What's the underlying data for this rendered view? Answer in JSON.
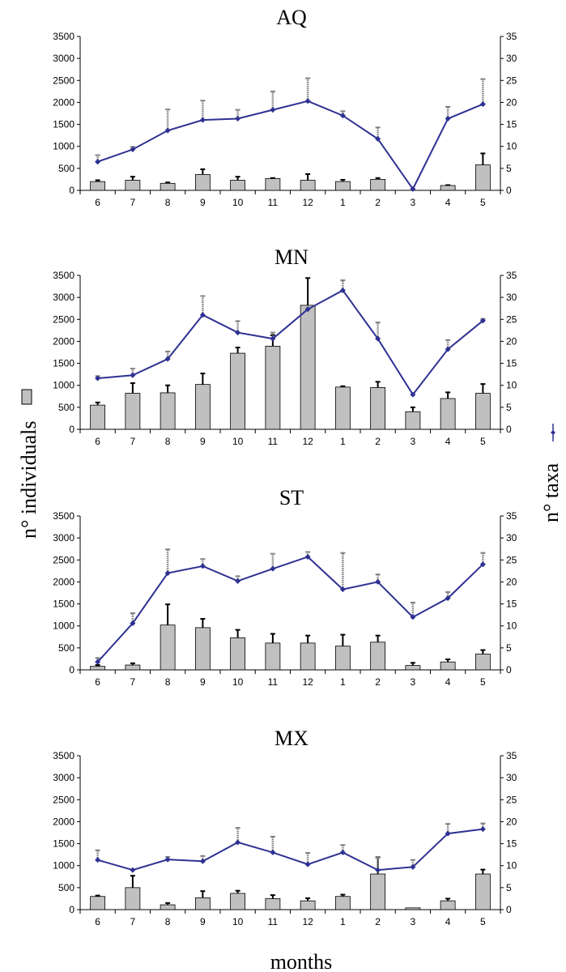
{
  "chart_data": [
    {
      "type": "bar",
      "title": "AQ",
      "categories": [
        "6",
        "7",
        "8",
        "9",
        "10",
        "11",
        "12",
        "1",
        "2",
        "3",
        "4",
        "5"
      ],
      "ylim": [
        0,
        3500
      ],
      "y2lim": [
        0,
        35
      ],
      "yticks": [
        "0",
        "500",
        "1000",
        "1500",
        "2000",
        "2500",
        "3000",
        "3500"
      ],
      "y2ticks": [
        "0",
        "5",
        "10",
        "15",
        "20",
        "25",
        "30",
        "35"
      ],
      "series": [
        {
          "name": "n° individuals",
          "axis": "left",
          "values": [
            200,
            230,
            160,
            360,
            230,
            270,
            230,
            200,
            250,
            0,
            110,
            580
          ],
          "error": [
            30,
            80,
            20,
            120,
            80,
            10,
            140,
            40,
            30,
            0,
            10,
            260
          ]
        },
        {
          "name": "n° taxa",
          "axis": "right",
          "values": [
            6.5,
            9.3,
            13.6,
            16,
            16.3,
            18.3,
            20.3,
            17,
            11.7,
            0.3,
            16.3,
            19.6
          ],
          "error": [
            1.5,
            0.6,
            4.8,
            4.4,
            2,
            4.2,
            5.2,
            1,
            2.6,
            0,
            2.7,
            5.7
          ]
        }
      ]
    },
    {
      "type": "bar",
      "title": "MN",
      "categories": [
        "6",
        "7",
        "8",
        "9",
        "10",
        "11",
        "12",
        "1",
        "2",
        "3",
        "4",
        "5"
      ],
      "ylim": [
        0,
        3500
      ],
      "y2lim": [
        0,
        35
      ],
      "yticks": [
        "0",
        "500",
        "1000",
        "1500",
        "2000",
        "2500",
        "3000",
        "3500"
      ],
      "y2ticks": [
        "0",
        "5",
        "10",
        "15",
        "20",
        "25",
        "30",
        "35"
      ],
      "series": [
        {
          "name": "n° individuals",
          "axis": "left",
          "values": [
            550,
            820,
            830,
            1020,
            1730,
            1890,
            2820,
            960,
            950,
            400,
            700,
            820
          ],
          "error": [
            60,
            230,
            170,
            250,
            130,
            250,
            620,
            20,
            130,
            100,
            140,
            210
          ]
        },
        {
          "name": "n° taxa",
          "axis": "right",
          "values": [
            11.6,
            12.3,
            16,
            26,
            22,
            20.6,
            27.3,
            31.6,
            20.6,
            7.9,
            18.2,
            24.7
          ],
          "error": [
            0.5,
            1.5,
            1.7,
            4.3,
            2.6,
            1.4,
            0,
            2.3,
            3.7,
            0,
            2.1,
            0.4
          ]
        }
      ]
    },
    {
      "type": "bar",
      "title": "ST",
      "categories": [
        "6",
        "7",
        "8",
        "9",
        "10",
        "11",
        "12",
        "1",
        "2",
        "3",
        "4",
        "5"
      ],
      "ylim": [
        0,
        3500
      ],
      "y2lim": [
        0,
        35
      ],
      "yticks": [
        "0",
        "500",
        "1000",
        "1500",
        "2000",
        "2500",
        "3000",
        "3500"
      ],
      "y2ticks": [
        "0",
        "5",
        "10",
        "15",
        "20",
        "25",
        "30",
        "35"
      ],
      "series": [
        {
          "name": "n° individuals",
          "axis": "left",
          "values": [
            80,
            110,
            1020,
            960,
            730,
            610,
            610,
            540,
            630,
            100,
            180,
            360
          ],
          "error": [
            30,
            40,
            470,
            200,
            180,
            210,
            170,
            260,
            150,
            60,
            60,
            90
          ]
        },
        {
          "name": "n° taxa",
          "axis": "right",
          "values": [
            1.8,
            10.6,
            22,
            23.6,
            20.2,
            23,
            25.7,
            18.3,
            20,
            12,
            16.3,
            24
          ],
          "error": [
            0.9,
            2.3,
            5.4,
            1.6,
            1.1,
            3.4,
            1.1,
            8.3,
            1.7,
            3.3,
            1.4,
            2.6
          ]
        }
      ]
    },
    {
      "type": "bar",
      "title": "MX",
      "categories": [
        "6",
        "7",
        "8",
        "9",
        "10",
        "11",
        "12",
        "1",
        "2",
        "3",
        "4",
        "5"
      ],
      "ylim": [
        0,
        3500
      ],
      "y2lim": [
        0,
        35
      ],
      "yticks": [
        "0",
        "500",
        "1000",
        "1500",
        "2000",
        "2500",
        "3000",
        "3500"
      ],
      "y2ticks": [
        "0",
        "5",
        "10",
        "15",
        "20",
        "25",
        "30",
        "35"
      ],
      "series": [
        {
          "name": "n° individuals",
          "axis": "left",
          "values": [
            300,
            500,
            110,
            270,
            370,
            250,
            200,
            300,
            810,
            40,
            200,
            810
          ],
          "error": [
            20,
            270,
            40,
            150,
            60,
            80,
            60,
            40,
            380,
            0,
            50,
            100
          ]
        },
        {
          "name": "n° taxa",
          "axis": "right",
          "values": [
            11.3,
            9,
            11.4,
            11,
            15.3,
            13,
            10.3,
            13,
            9,
            9.7,
            17.3,
            18.3
          ],
          "error": [
            2.2,
            0,
            0.6,
            1.2,
            3.3,
            3.6,
            2.6,
            1.7,
            2.8,
            1.6,
            2.2,
            1.3
          ]
        }
      ]
    }
  ],
  "labels": {
    "left_axis": "n° individuals",
    "right_axis": "n° taxa",
    "x_axis": "months"
  },
  "colors": {
    "bar_fill": "#c0c0c0",
    "bar_stroke": "#000000",
    "line": "#2e3192",
    "error_bar_taxa": "#808080"
  },
  "icons": {
    "bar_legend": "grey-square-icon",
    "line_legend": "line-with-diamond-marker-icon"
  }
}
